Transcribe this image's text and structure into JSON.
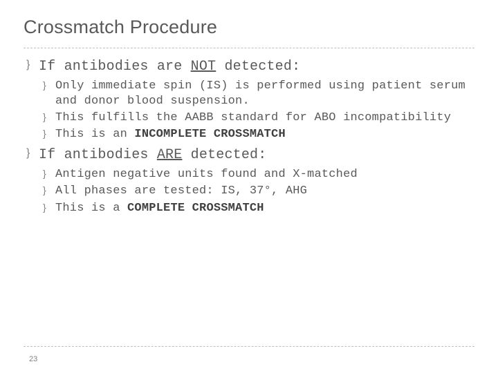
{
  "colors": {
    "background": "#ffffff",
    "text": "#595959",
    "bold_text": "#404040",
    "bullet": "#7f7f7f",
    "divider": "#bfbfbf",
    "page_num": "#808080"
  },
  "typography": {
    "title_font": "Arial",
    "body_font": "Courier New",
    "title_size_pt": 20,
    "l1_size_pt": 15,
    "l2_size_pt": 13
  },
  "bullet_char": "}",
  "title": "Crossmatch Procedure",
  "page_number": "23",
  "section1": {
    "heading_pre": "If antibodies are ",
    "heading_underlined": "NOT",
    "heading_post": " detected:",
    "b1": "Only immediate spin (IS) is performed using patient serum and donor blood suspension.",
    "b2": "This fulfills the AABB standard for ABO incompatibility",
    "b3_pre": "This is an ",
    "b3_bold": "INCOMPLETE CROSSMATCH"
  },
  "section2": {
    "heading_pre": "If antibodies ",
    "heading_underlined": "ARE",
    "heading_post": " detected:",
    "b1": "Antigen negative units found and X-matched",
    "b2": "All phases are tested:  IS, 37°, AHG",
    "b3_pre": "This is a ",
    "b3_bold": "COMPLETE CROSSMATCH"
  }
}
